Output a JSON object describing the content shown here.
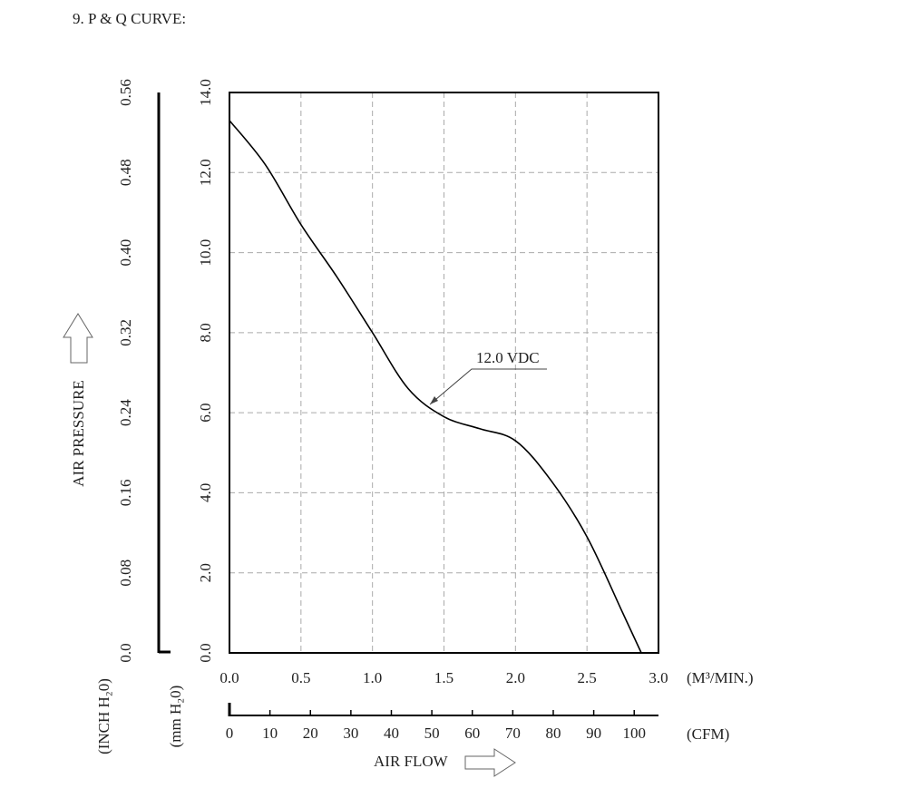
{
  "chart_data": {
    "type": "line",
    "title": "9. P & Q CURVE:",
    "ylabel": "AIR PRESSURE",
    "y_unit": "(mm H₂0)",
    "y2_unit": "(INCH H₂0)",
    "xlabel": "AIR FLOW",
    "x_unit": "(M³/MIN.)",
    "x2_unit": "(CFM)",
    "x": [
      0,
      0.25,
      0.5,
      0.75,
      1.0,
      1.25,
      1.5,
      1.75,
      2.0,
      2.25,
      2.5,
      2.75,
      2.88
    ],
    "series": [
      {
        "name": "12.0 VDC",
        "color": "#000000",
        "values": [
          13.3,
          12.2,
          10.7,
          9.4,
          8.0,
          6.6,
          5.9,
          5.6,
          5.3,
          4.3,
          2.9,
          1.0,
          0
        ]
      }
    ],
    "xlim": [
      0,
      3.0
    ],
    "xticks": [
      {
        "value": 0,
        "label": "0.0"
      },
      0.5,
      {
        "value": 1,
        "label": "1.0"
      },
      1.5,
      {
        "value": 2,
        "label": "2.0"
      },
      2.5,
      {
        "value": 3,
        "label": "3.0"
      }
    ],
    "ylim": [
      0,
      14.0
    ],
    "yticks": [
      {
        "value": 0,
        "label": "0.0"
      },
      {
        "value": 2,
        "label": "2.0"
      },
      {
        "value": 4,
        "label": "4.0"
      },
      {
        "value": 6,
        "label": "6.0"
      },
      {
        "value": 8,
        "label": "8.0"
      },
      {
        "value": 10,
        "label": "10.0"
      },
      {
        "value": 12,
        "label": "12.0"
      },
      {
        "value": 14,
        "label": "14.0"
      }
    ],
    "y2lim": [
      0,
      0.56
    ],
    "y2ticks": [
      {
        "value": 0,
        "label": "0.0"
      },
      0.08,
      0.16,
      0.24,
      0.32,
      {
        "value": 0.4,
        "label": "0.40"
      },
      0.48,
      0.56
    ],
    "x2lim": [
      0,
      106
    ],
    "x2ticks": [
      0,
      10,
      20,
      30,
      40,
      50,
      60,
      70,
      80,
      90,
      100
    ],
    "grid": true
  }
}
